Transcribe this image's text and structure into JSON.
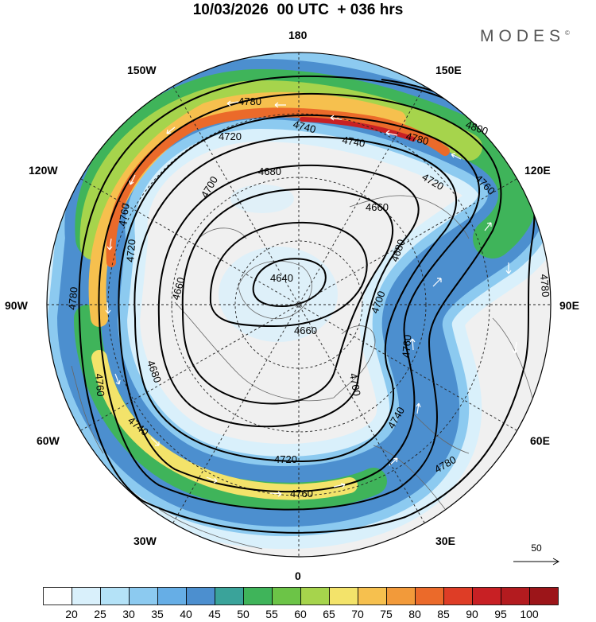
{
  "title": "10/03/2026  00 UTC  + 036 hrs",
  "brand": "MODES",
  "brand_mark": "©",
  "longitude_labels": {
    "180": "180",
    "150E": "150E",
    "120E": "120E",
    "90E": "90E",
    "60E": "60E",
    "30E": "30E",
    "0": "0",
    "30W": "30W",
    "60W": "60W",
    "90W": "90W",
    "120W": "120W",
    "150W": "150W"
  },
  "reference_vector": {
    "label": "50"
  },
  "colorbar": {
    "colors": [
      "#ffffff",
      "#d9f0fb",
      "#b4e2f7",
      "#8ccaf0",
      "#66aee6",
      "#4c8fcf",
      "#3aa39a",
      "#3fb45a",
      "#6cc447",
      "#a6d44c",
      "#f3e36a",
      "#f6c04e",
      "#f29a3a",
      "#eb6a2a",
      "#de3d26",
      "#c82024",
      "#b31b1f",
      "#9c1519"
    ],
    "labels": [
      "20",
      "25",
      "30",
      "35",
      "40",
      "45",
      "50",
      "55",
      "60",
      "65",
      "70",
      "75",
      "80",
      "85",
      "90",
      "95",
      "100"
    ]
  },
  "contours": {
    "labels": [
      "4640",
      "4660",
      "4660",
      "4660",
      "4680",
      "4680",
      "4680",
      "4700",
      "4700",
      "4700",
      "4720",
      "4720",
      "4720",
      "4720",
      "4740",
      "4740",
      "4740",
      "4740",
      "4760",
      "4760",
      "4760",
      "4760",
      "4760",
      "4780",
      "4780",
      "4780",
      "4780",
      "4780",
      "4800"
    ]
  },
  "colors": {
    "land": "#f0f0f0",
    "jet_core": "#de3d26",
    "frame": "#000000"
  }
}
